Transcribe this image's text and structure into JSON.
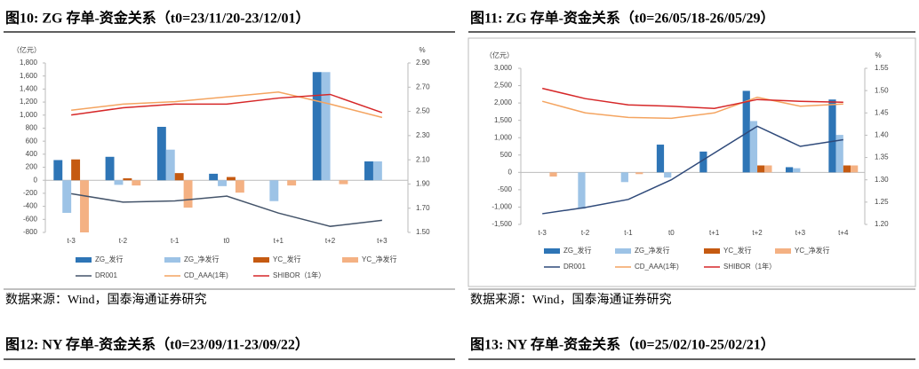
{
  "chart_data": [
    {
      "type": "bar",
      "title": "图10:  ZG 存单-资金关系（t0=23/11/20-23/12/01）",
      "ylabel": "（亿元）",
      "y2label": "%",
      "categories": [
        "t-3",
        "t-2",
        "t-1",
        "t0",
        "t+1",
        "t+2",
        "t+3"
      ],
      "ylim": [
        -800,
        1800
      ],
      "yticks": [
        -800,
        -600,
        -400,
        -200,
        0,
        200,
        400,
        600,
        800,
        {
          "value": 1000,
          "label": "1,000"
        },
        {
          "value": 1200,
          "label": "1,200"
        },
        {
          "value": 1400,
          "label": "1,400"
        },
        {
          "value": 1600,
          "label": "1,600"
        },
        {
          "value": 1800,
          "label": "1,800"
        }
      ],
      "y2lim": [
        1.5,
        2.9
      ],
      "y2ticks": [
        {
          "value": 1.5,
          "label": "1.50"
        },
        {
          "value": 1.7,
          "label": "1.70"
        },
        {
          "value": 1.9,
          "label": "1.90"
        },
        {
          "value": 2.1,
          "label": "2.10"
        },
        {
          "value": 2.3,
          "label": "2.30"
        },
        {
          "value": 2.5,
          "label": "2.50"
        },
        {
          "value": 2.7,
          "label": "2.70"
        },
        {
          "value": 2.9,
          "label": "2.90"
        }
      ],
      "series": [
        {
          "name": "ZG_发行",
          "type": "bar",
          "color": "#2e75b6",
          "values": [
            310,
            360,
            820,
            100,
            0,
            1660,
            290
          ]
        },
        {
          "name": "ZG_净发行",
          "type": "bar",
          "color": "#9dc3e6",
          "values": [
            -500,
            -70,
            470,
            -90,
            -320,
            1660,
            290
          ]
        },
        {
          "name": "YC_发行",
          "type": "bar",
          "color": "#c55a11",
          "values": [
            320,
            30,
            110,
            50,
            0,
            0,
            0
          ]
        },
        {
          "name": "YC_净发行",
          "type": "bar",
          "color": "#f4b183",
          "values": [
            -800,
            -80,
            -420,
            -190,
            -80,
            -60,
            0
          ]
        },
        {
          "name": "DR001",
          "type": "line",
          "axis": "y2",
          "color": "#44546a",
          "values": [
            1.82,
            1.75,
            1.76,
            1.8,
            1.66,
            1.55,
            1.6
          ]
        },
        {
          "name": "CD_AAA(1年)",
          "type": "line",
          "axis": "y2",
          "color": "#f4a460",
          "values": [
            2.51,
            2.56,
            2.58,
            2.62,
            2.66,
            2.56,
            2.45
          ]
        },
        {
          "name": "SHIBOR（1年）",
          "type": "line",
          "axis": "y2",
          "color": "#d62728",
          "values": [
            2.47,
            2.53,
            2.56,
            2.56,
            2.61,
            2.64,
            2.49
          ]
        }
      ],
      "source": "数据来源：Wind，国泰海通证券研究"
    },
    {
      "type": "bar",
      "title": "图11:  ZG 存单-资金关系（t0=26/05/18-26/05/29）",
      "ylabel": "（亿元）",
      "y2label": "%",
      "categories": [
        "t-3",
        "t-2",
        "t-1",
        "t0",
        "t+1",
        "t+2",
        "t+3",
        "t+4"
      ],
      "ylim": [
        -1500,
        3000
      ],
      "yticks": [
        {
          "value": -1500,
          "label": "-1,500"
        },
        {
          "value": -1000,
          "label": "-1,000"
        },
        -500,
        0,
        500,
        {
          "value": 1000,
          "label": "1,000"
        },
        {
          "value": 1500,
          "label": "1,500"
        },
        {
          "value": 2000,
          "label": "2,000"
        },
        {
          "value": 2500,
          "label": "2,500"
        },
        {
          "value": 3000,
          "label": "3,000"
        }
      ],
      "y2lim": [
        1.2,
        1.55
      ],
      "y2ticks": [
        {
          "value": 1.2,
          "label": "1.20"
        },
        1.25,
        {
          "value": 1.3,
          "label": "1.30"
        },
        1.35,
        {
          "value": 1.4,
          "label": "1.40"
        },
        1.45,
        {
          "value": 1.5,
          "label": "1.50"
        },
        1.55
      ],
      "series": [
        {
          "name": "ZG_发行",
          "type": "bar",
          "color": "#2e75b6",
          "values": [
            0,
            0,
            0,
            800,
            600,
            2350,
            150,
            2100
          ]
        },
        {
          "name": "ZG_净发行",
          "type": "bar",
          "color": "#9dc3e6",
          "values": [
            0,
            -1050,
            -280,
            -150,
            0,
            1480,
            120,
            1080
          ]
        },
        {
          "name": "YC_发行",
          "type": "bar",
          "color": "#c55a11",
          "values": [
            0,
            0,
            0,
            0,
            0,
            200,
            0,
            200
          ]
        },
        {
          "name": "YC_净发行",
          "type": "bar",
          "color": "#f4b183",
          "values": [
            -120,
            0,
            -50,
            0,
            0,
            200,
            0,
            200
          ]
        },
        {
          "name": "DR001",
          "type": "line",
          "axis": "y2",
          "color": "#2f4a7a",
          "values": [
            1.224,
            1.238,
            1.256,
            1.3,
            1.36,
            1.42,
            1.375,
            1.39
          ]
        },
        {
          "name": "CD_AAA(1年)",
          "type": "line",
          "axis": "y2",
          "color": "#f4a460",
          "values": [
            1.476,
            1.45,
            1.44,
            1.438,
            1.45,
            1.485,
            1.465,
            1.47
          ]
        },
        {
          "name": "SHIBOR（1年）",
          "type": "line",
          "axis": "y2",
          "color": "#d62728",
          "values": [
            1.505,
            1.482,
            1.468,
            1.465,
            1.46,
            1.48,
            1.476,
            1.474
          ]
        }
      ],
      "source": "数据来源：Wind，国泰海通证券研究"
    }
  ],
  "figures": [
    {
      "title": "图12:  NY 存单-资金关系（t0=23/09/11-23/09/22）"
    },
    {
      "title": "图13:  NY 存单-资金关系（t0=25/02/10-25/02/21）"
    }
  ]
}
